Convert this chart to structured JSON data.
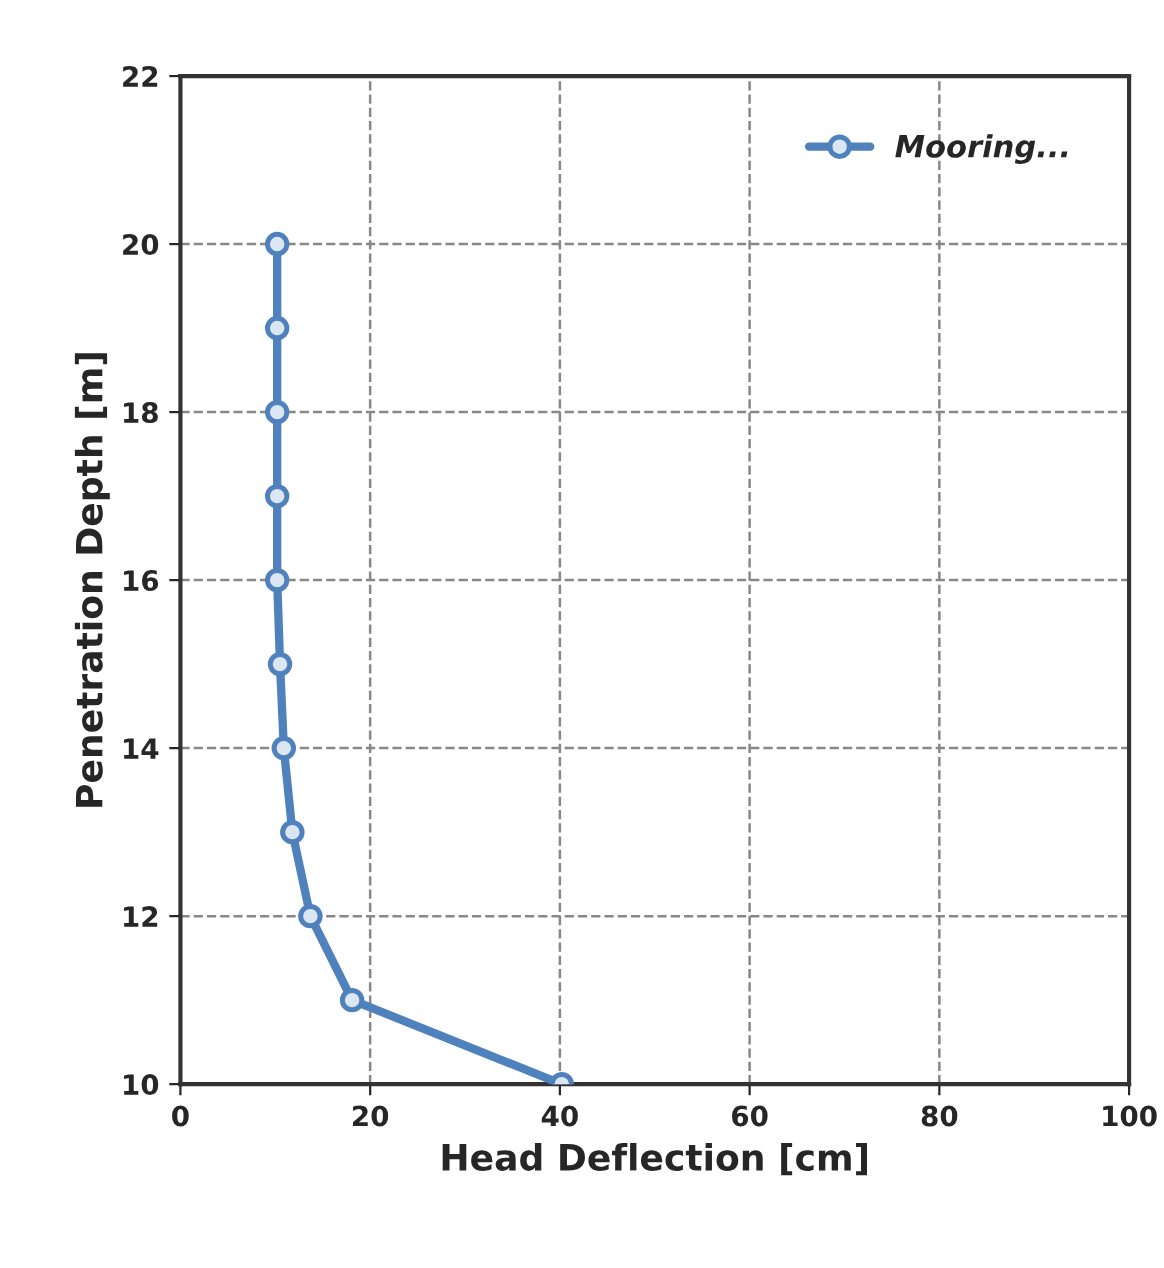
{
  "chart_data": {
    "type": "line",
    "xlabel": "Head Deflection [cm]",
    "ylabel": "Penetration Depth [m]",
    "series": [
      {
        "name": "Mooring...",
        "color": "#4f81bd",
        "x": [
          40.2,
          18.1,
          13.7,
          11.8,
          10.9,
          10.5,
          10.2,
          10.2,
          10.2,
          10.2,
          10.2
        ],
        "values": [
          10,
          11,
          12,
          13,
          14,
          15,
          16,
          17,
          18,
          19,
          20
        ]
      }
    ],
    "xlim": [
      0,
      100
    ],
    "xticks": [
      0,
      20,
      40,
      60,
      80,
      100
    ],
    "ylim": [
      10,
      22
    ],
    "yticks": [
      10,
      12,
      14,
      16,
      18,
      20,
      22
    ],
    "grid": true,
    "legend": "top right",
    "marker": "circle",
    "line_style": "solid"
  }
}
